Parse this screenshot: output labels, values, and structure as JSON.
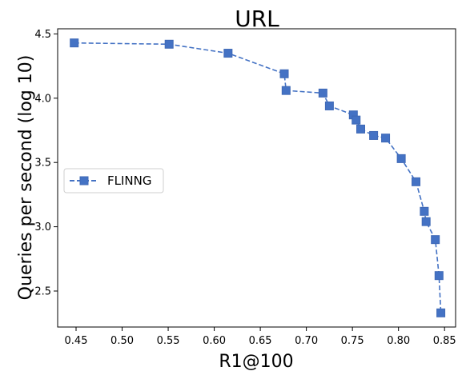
{
  "chart_data": {
    "type": "line",
    "title": "URL",
    "xlabel": "R1@100",
    "ylabel": "Queries per second (log 10)",
    "xlim": [
      0.43,
      0.862
    ],
    "ylim": [
      2.22,
      4.54
    ],
    "xticks": [
      0.45,
      0.5,
      0.55,
      0.6,
      0.65,
      0.7,
      0.75,
      0.8,
      0.85
    ],
    "xtick_labels": [
      "0.45",
      "0.50",
      "0.55",
      "0.60",
      "0.65",
      "0.70",
      "0.75",
      "0.80",
      "0.85"
    ],
    "yticks": [
      2.5,
      3.0,
      3.5,
      4.0,
      4.5
    ],
    "ytick_labels": [
      "2.5",
      "3.0",
      "3.5",
      "4.0",
      "4.5"
    ],
    "grid": false,
    "legend_position": "center-left",
    "series": [
      {
        "name": "FLINNG",
        "color": "#4472c4",
        "marker": "square",
        "linestyle": "dashed",
        "x": [
          0.448,
          0.551,
          0.615,
          0.676,
          0.678,
          0.718,
          0.725,
          0.751,
          0.754,
          0.759,
          0.773,
          0.786,
          0.803,
          0.819,
          0.828,
          0.83,
          0.84,
          0.844,
          0.846
        ],
        "y": [
          4.43,
          4.42,
          4.35,
          4.19,
          4.06,
          4.04,
          3.94,
          3.87,
          3.83,
          3.76,
          3.71,
          3.69,
          3.53,
          3.35,
          3.12,
          3.04,
          2.9,
          2.62,
          2.33
        ]
      }
    ]
  }
}
